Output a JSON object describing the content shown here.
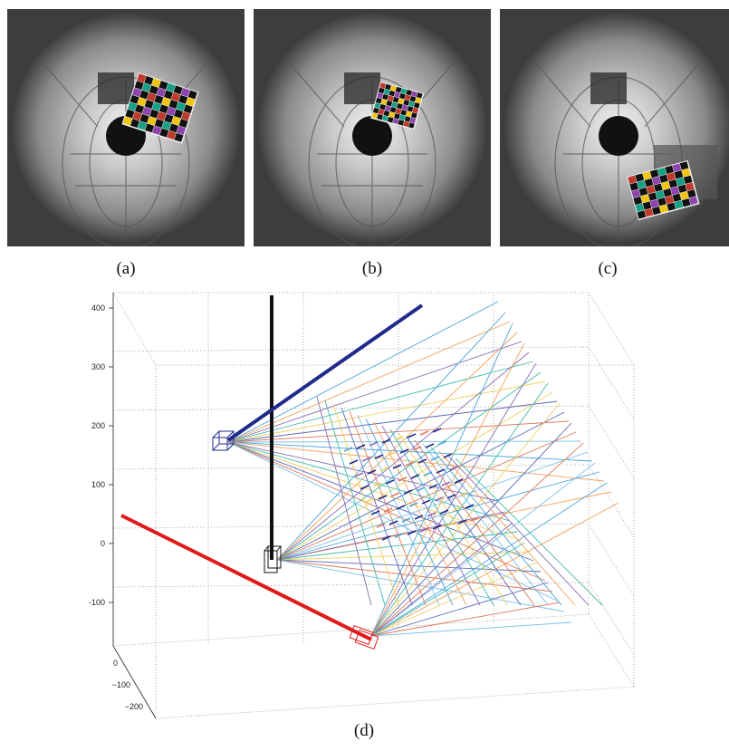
{
  "captions": {
    "a": "(a)",
    "b": "(b)",
    "c": "(c)",
    "d": "(d)"
  },
  "panels": [
    {
      "id": "a",
      "board": "upper-right"
    },
    {
      "id": "b",
      "board": "upper-right-small"
    },
    {
      "id": "c",
      "board": "lower-right"
    }
  ],
  "plot": {
    "z_ticks": [
      "400",
      "300",
      "200",
      "100",
      "0",
      "-100"
    ],
    "y_ticks": [
      "0",
      "−100",
      "−200"
    ],
    "colors": {
      "blue_camera": "#1f2a8a",
      "red_camera": "#e01a1a",
      "black_camera": "#111111"
    },
    "ray_colors": [
      "#4aa3d8",
      "#f2a15a",
      "#8a6bb3",
      "#3fbcaa",
      "#f0d060",
      "#5a6ab8",
      "#e07a5a",
      "#7ac0e8"
    ]
  }
}
